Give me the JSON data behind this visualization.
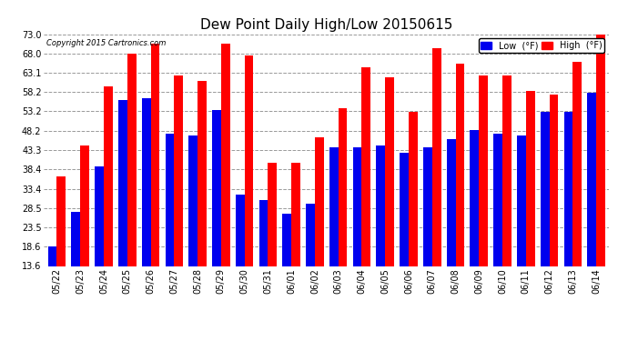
{
  "title": "Dew Point Daily High/Low 20150615",
  "copyright": "Copyright 2015 Cartronics.com",
  "categories": [
    "05/22",
    "05/23",
    "05/24",
    "05/25",
    "05/26",
    "05/27",
    "05/28",
    "05/29",
    "05/30",
    "05/31",
    "06/01",
    "06/02",
    "06/03",
    "06/04",
    "06/05",
    "06/06",
    "06/07",
    "06/08",
    "06/09",
    "06/10",
    "06/11",
    "06/12",
    "06/13",
    "06/14"
  ],
  "low_values": [
    18.6,
    27.5,
    39.0,
    56.0,
    56.5,
    47.5,
    47.0,
    53.5,
    32.0,
    30.5,
    27.0,
    29.5,
    44.0,
    44.0,
    44.5,
    42.5,
    44.0,
    46.0,
    48.5,
    47.5,
    47.0,
    53.0,
    53.0,
    58.0
  ],
  "high_values": [
    36.5,
    44.5,
    59.5,
    68.0,
    70.5,
    62.5,
    61.0,
    70.5,
    67.5,
    40.0,
    40.0,
    46.5,
    54.0,
    64.5,
    62.0,
    53.0,
    69.5,
    65.5,
    62.5,
    62.5,
    58.5,
    57.5,
    66.0,
    73.0
  ],
  "ylim": [
    13.6,
    73.0
  ],
  "yticks": [
    13.6,
    18.6,
    23.5,
    28.5,
    33.4,
    38.4,
    43.3,
    48.2,
    53.2,
    58.2,
    63.1,
    68.0,
    73.0
  ],
  "bar_width": 0.38,
  "low_color": "#0000ee",
  "high_color": "#ff0000",
  "background_color": "#ffffff",
  "grid_color": "#999999",
  "title_fontsize": 11,
  "tick_fontsize": 7,
  "copyright_fontsize": 6,
  "legend_fontsize": 7
}
